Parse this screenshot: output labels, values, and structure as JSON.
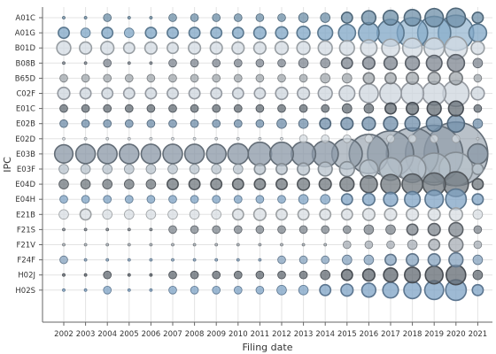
{
  "chart_data": {
    "type": "scatter",
    "subtype": "bubble",
    "title": "",
    "xlabel": "Filing date",
    "ylabel": "IPC",
    "x_categories": [
      "2002",
      "2003",
      "2004",
      "2005",
      "2006",
      "2007",
      "2008",
      "2009",
      "2010",
      "2011",
      "2012",
      "2013",
      "2014",
      "2015",
      "2016",
      "2017",
      "2018",
      "2019",
      "2020",
      "2021"
    ],
    "y_categories": [
      "A01C",
      "A01G",
      "B01D",
      "B08B",
      "B65D",
      "C02F",
      "E01C",
      "E02B",
      "E02D",
      "E03B",
      "E03F",
      "E04D",
      "E04H",
      "E21B",
      "F21S",
      "F21V",
      "F24F",
      "H02J",
      "H02S"
    ],
    "grid": true,
    "legend": "none",
    "series": [
      {
        "ipc": "A01C",
        "color": "#6e8fa8",
        "values": [
          0,
          0,
          1,
          0,
          0,
          1,
          1,
          1,
          1,
          1,
          1,
          2,
          2,
          3,
          6,
          7,
          9,
          12,
          13,
          3
        ]
      },
      {
        "ipc": "A01G",
        "color": "#7fa6c6",
        "values": [
          3,
          2,
          3,
          2,
          3,
          3,
          3,
          3,
          3,
          4,
          4,
          5,
          7,
          10,
          16,
          30,
          40,
          48,
          56,
          11
        ]
      },
      {
        "ipc": "B01D",
        "color": "#d3dbe3",
        "values": [
          6,
          4,
          5,
          3,
          4,
          3,
          4,
          4,
          4,
          4,
          5,
          5,
          6,
          7,
          9,
          11,
          14,
          15,
          20,
          5
        ]
      },
      {
        "ipc": "B08B",
        "color": "#7d8690",
        "values": [
          0,
          0,
          1,
          0,
          0,
          1,
          1,
          1,
          1,
          1,
          1,
          2,
          2,
          3,
          4,
          5,
          6,
          8,
          10,
          2
        ]
      },
      {
        "ipc": "B65D",
        "color": "#a2a8ae",
        "values": [
          1,
          1,
          1,
          1,
          1,
          1,
          1,
          1,
          1,
          1,
          1,
          1,
          2,
          2,
          3,
          3,
          4,
          4,
          5,
          1
        ]
      },
      {
        "ipc": "C02F",
        "color": "#cdd5de",
        "values": [
          4,
          3,
          3,
          3,
          3,
          3,
          3,
          3,
          3,
          3,
          4,
          4,
          6,
          8,
          13,
          18,
          20,
          22,
          28,
          5
        ]
      },
      {
        "ipc": "E01C",
        "color": "#646d76",
        "values": [
          1,
          1,
          1,
          1,
          1,
          1,
          1,
          1,
          1,
          1,
          1,
          1,
          1,
          2,
          2,
          3,
          4,
          6,
          7,
          1
        ]
      },
      {
        "ipc": "E02B",
        "color": "#6f8ea9",
        "values": [
          1,
          1,
          1,
          1,
          1,
          1,
          1,
          1,
          1,
          1,
          2,
          2,
          3,
          4,
          5,
          6,
          7,
          8,
          10,
          2
        ]
      },
      {
        "ipc": "E02D",
        "color": "#d6dce1",
        "values": [
          0,
          0,
          0,
          0,
          0,
          0,
          0,
          0,
          0,
          0,
          0,
          1,
          1,
          1,
          1,
          1,
          1,
          1,
          1,
          0
        ]
      },
      {
        "ipc": "E03B",
        "color": "#8a97a5",
        "values": [
          12,
          14,
          14,
          14,
          14,
          14,
          14,
          14,
          16,
          22,
          22,
          24,
          28,
          40,
          70,
          100,
          130,
          160,
          200,
          15
        ]
      },
      {
        "ipc": "E03F",
        "color": "#b8c3cc",
        "values": [
          2,
          2,
          2,
          2,
          2,
          2,
          2,
          2,
          2,
          3,
          3,
          4,
          6,
          7,
          12,
          20,
          30,
          45,
          50,
          3
        ]
      },
      {
        "ipc": "E04D",
        "color": "#70787f",
        "values": [
          2,
          2,
          2,
          2,
          2,
          3,
          3,
          3,
          3,
          3,
          3,
          4,
          4,
          6,
          10,
          14,
          16,
          20,
          25,
          3
        ]
      },
      {
        "ipc": "E04H",
        "color": "#7fa3c4",
        "values": [
          1,
          1,
          1,
          1,
          1,
          1,
          1,
          1,
          1,
          1,
          1,
          2,
          2,
          3,
          4,
          6,
          8,
          12,
          16,
          3
        ]
      },
      {
        "ipc": "E21B",
        "color": "#d8dee3",
        "values": [
          2,
          3,
          2,
          2,
          2,
          2,
          2,
          2,
          3,
          4,
          3,
          3,
          3,
          3,
          4,
          4,
          4,
          4,
          5,
          2
        ]
      },
      {
        "ipc": "F21S",
        "color": "#7e868d",
        "values": [
          0,
          0,
          0,
          0,
          0,
          1,
          1,
          1,
          1,
          1,
          1,
          1,
          1,
          1,
          2,
          2,
          3,
          4,
          6,
          1
        ]
      },
      {
        "ipc": "F21V",
        "color": "#a7aeb5",
        "values": [
          0,
          0,
          0,
          0,
          0,
          0,
          0,
          0,
          0,
          0,
          0,
          0,
          0,
          1,
          1,
          1,
          2,
          3,
          6,
          1
        ]
      },
      {
        "ipc": "F24F",
        "color": "#86a3bf",
        "values": [
          1,
          0,
          0,
          0,
          0,
          0,
          0,
          0,
          0,
          0,
          1,
          1,
          1,
          2,
          2,
          3,
          4,
          4,
          6,
          2
        ]
      },
      {
        "ipc": "H02J",
        "color": "#626a72",
        "values": [
          0,
          0,
          1,
          0,
          0,
          1,
          1,
          1,
          1,
          1,
          1,
          1,
          2,
          3,
          4,
          6,
          8,
          11,
          14,
          2
        ]
      },
      {
        "ipc": "H02S",
        "color": "#7ea3c6",
        "values": [
          0,
          0,
          1,
          0,
          0,
          1,
          1,
          1,
          1,
          1,
          2,
          2,
          3,
          4,
          6,
          8,
          10,
          13,
          16,
          3
        ]
      }
    ]
  }
}
